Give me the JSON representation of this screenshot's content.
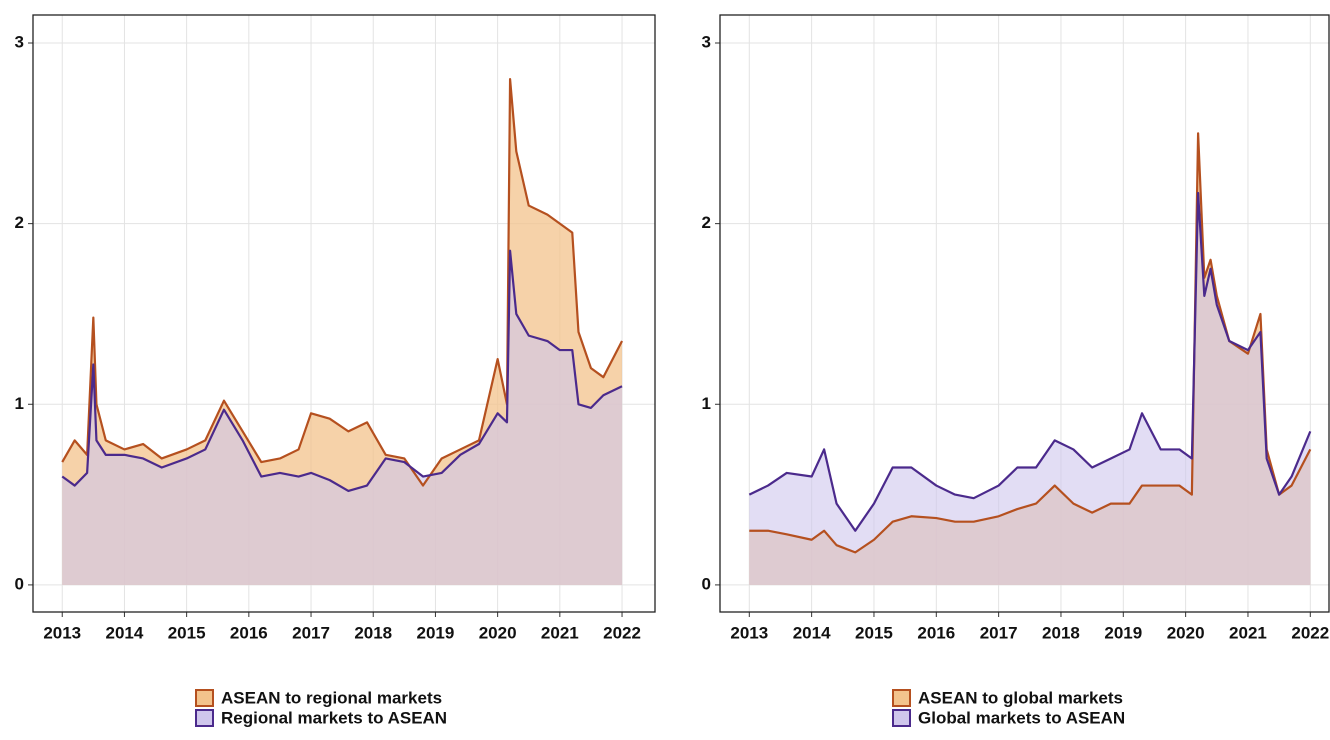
{
  "chart_data": [
    {
      "type": "area",
      "x": [
        2013.0,
        2013.2,
        2013.4,
        2013.5,
        2013.55,
        2013.7,
        2014.0,
        2014.3,
        2014.6,
        2015.0,
        2015.3,
        2015.6,
        2015.9,
        2016.2,
        2016.5,
        2016.8,
        2017.0,
        2017.3,
        2017.6,
        2017.9,
        2018.2,
        2018.5,
        2018.8,
        2019.1,
        2019.4,
        2019.7,
        2020.0,
        2020.15,
        2020.2,
        2020.3,
        2020.5,
        2020.8,
        2021.0,
        2021.2,
        2021.3,
        2021.5,
        2021.7,
        2022.0
      ],
      "series": [
        {
          "name": "ASEAN to regional markets",
          "color": "#b5501f",
          "fill": "#f3c38c",
          "values": [
            0.68,
            0.8,
            0.72,
            1.48,
            1.0,
            0.8,
            0.75,
            0.78,
            0.7,
            0.75,
            0.8,
            1.02,
            0.85,
            0.68,
            0.7,
            0.75,
            0.95,
            0.92,
            0.85,
            0.9,
            0.72,
            0.7,
            0.55,
            0.7,
            0.75,
            0.8,
            1.25,
            1.0,
            2.8,
            2.4,
            2.1,
            2.05,
            2.0,
            1.95,
            1.4,
            1.2,
            1.15,
            1.35
          ]
        },
        {
          "name": "Regional markets to ASEAN",
          "color": "#4b2a8c",
          "fill": "#cfc6ec",
          "values": [
            0.6,
            0.55,
            0.62,
            1.22,
            0.8,
            0.72,
            0.72,
            0.7,
            0.65,
            0.7,
            0.75,
            0.97,
            0.8,
            0.6,
            0.62,
            0.6,
            0.62,
            0.58,
            0.52,
            0.55,
            0.7,
            0.68,
            0.6,
            0.62,
            0.72,
            0.78,
            0.95,
            0.9,
            1.85,
            1.5,
            1.38,
            1.35,
            1.3,
            1.3,
            1.0,
            0.98,
            1.05,
            1.1
          ]
        }
      ],
      "xlim": [
        2012.53,
        2022.53
      ],
      "ylim": [
        -0.15,
        3.155
      ],
      "xticks": [
        2013,
        2014,
        2015,
        2016,
        2017,
        2018,
        2019,
        2020,
        2021,
        2022
      ],
      "yticks": [
        0,
        1,
        2,
        3
      ],
      "grid": true,
      "legend": "bottom"
    },
    {
      "type": "area",
      "x": [
        2013.0,
        2013.3,
        2013.6,
        2014.0,
        2014.2,
        2014.4,
        2014.7,
        2015.0,
        2015.3,
        2015.6,
        2016.0,
        2016.3,
        2016.6,
        2017.0,
        2017.3,
        2017.6,
        2017.9,
        2018.2,
        2018.5,
        2018.8,
        2019.1,
        2019.3,
        2019.6,
        2019.9,
        2020.1,
        2020.2,
        2020.3,
        2020.4,
        2020.5,
        2020.7,
        2021.0,
        2021.2,
        2021.3,
        2021.5,
        2021.7,
        2022.0
      ],
      "series": [
        {
          "name": "ASEAN to global markets",
          "color": "#b5501f",
          "fill": "#f3c38c",
          "values": [
            0.3,
            0.3,
            0.28,
            0.25,
            0.3,
            0.22,
            0.18,
            0.25,
            0.35,
            0.38,
            0.37,
            0.35,
            0.35,
            0.38,
            0.42,
            0.45,
            0.55,
            0.45,
            0.4,
            0.45,
            0.45,
            0.55,
            0.55,
            0.55,
            0.5,
            2.5,
            1.7,
            1.8,
            1.6,
            1.35,
            1.28,
            1.5,
            0.75,
            0.5,
            0.55,
            0.75
          ]
        },
        {
          "name": "Global markets to ASEAN",
          "color": "#4b2a8c",
          "fill": "#cfc6ec",
          "values": [
            0.5,
            0.55,
            0.62,
            0.6,
            0.75,
            0.45,
            0.3,
            0.45,
            0.65,
            0.65,
            0.55,
            0.5,
            0.48,
            0.55,
            0.65,
            0.65,
            0.8,
            0.75,
            0.65,
            0.7,
            0.75,
            0.95,
            0.75,
            0.75,
            0.7,
            2.17,
            1.6,
            1.75,
            1.55,
            1.35,
            1.3,
            1.4,
            0.7,
            0.5,
            0.6,
            0.85
          ]
        }
      ],
      "xlim": [
        2012.53,
        2022.3
      ],
      "ylim": [
        -0.15,
        3.155
      ],
      "xticks": [
        2013,
        2014,
        2015,
        2016,
        2017,
        2018,
        2019,
        2020,
        2021,
        2022
      ],
      "yticks": [
        0,
        1,
        2,
        3
      ],
      "grid": true,
      "legend": "bottom"
    }
  ]
}
